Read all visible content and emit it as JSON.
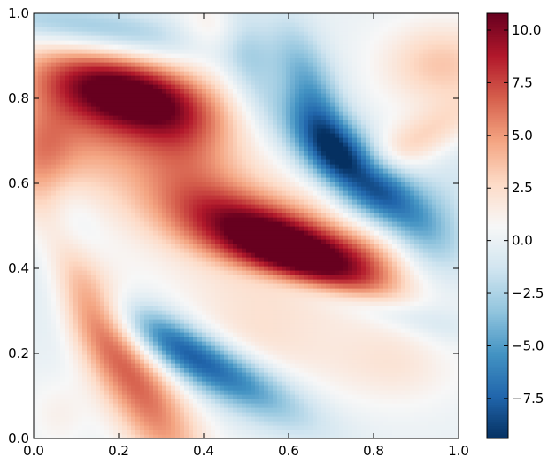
{
  "chart_data": {
    "type": "heatmap",
    "title": "",
    "xlabel": "",
    "ylabel": "",
    "xlim": [
      0.0,
      1.0
    ],
    "ylim": [
      0.0,
      1.0
    ],
    "x_ticks": [
      "0.0",
      "0.2",
      "0.4",
      "0.6",
      "0.8",
      "1.0"
    ],
    "y_ticks": [
      "0.0",
      "0.2",
      "0.4",
      "0.6",
      "0.8",
      "1.0"
    ],
    "colorbar": {
      "colormap": "RdBu_r",
      "range": [
        -9.4,
        10.8
      ],
      "tick_values": [
        -7.5,
        -5.0,
        -2.5,
        0.0,
        2.5,
        5.0,
        7.5,
        10.0
      ],
      "tick_labels": [
        "−7.5",
        "−5.0",
        "−2.5",
        "0.0",
        "2.5",
        "5.0",
        "7.5",
        "10.0"
      ]
    },
    "field_features": [
      {
        "kind": "max",
        "x": 0.62,
        "y": 0.44,
        "value": 10.5
      },
      {
        "kind": "max",
        "x": 0.2,
        "y": 0.82,
        "value": 9.5
      },
      {
        "kind": "max",
        "x": 0.25,
        "y": 0.15,
        "value": 6.0
      },
      {
        "kind": "max",
        "x": 0.98,
        "y": 0.88,
        "value": 3.5
      },
      {
        "kind": "max",
        "x": 0.02,
        "y": 0.64,
        "value": 3.0
      },
      {
        "kind": "max",
        "x": 0.5,
        "y": 0.24,
        "value": 1.8
      },
      {
        "kind": "min",
        "x": 0.77,
        "y": 0.62,
        "value": -9.0
      },
      {
        "kind": "min",
        "x": 0.42,
        "y": 0.17,
        "value": -6.5
      },
      {
        "kind": "min",
        "x": 0.15,
        "y": 0.96,
        "value": -3.0
      },
      {
        "kind": "min",
        "x": 0.72,
        "y": 0.33,
        "value": -2.5
      },
      {
        "kind": "min",
        "x": 0.04,
        "y": 0.38,
        "value": -1.5
      }
    ]
  }
}
